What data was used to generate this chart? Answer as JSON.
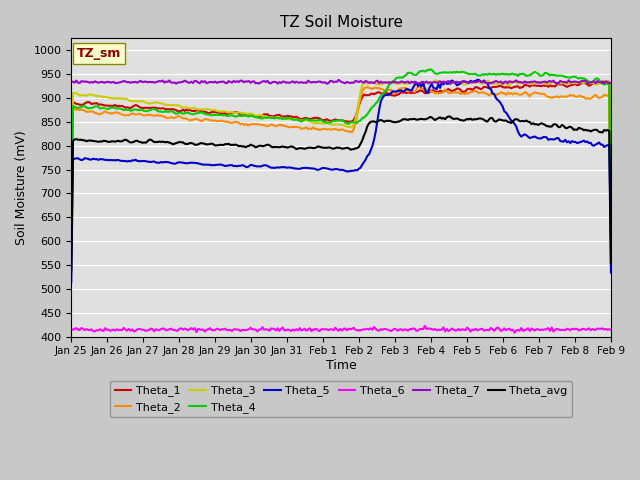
{
  "title": "TZ Soil Moisture",
  "xlabel": "Time",
  "ylabel": "Soil Moisture (mV)",
  "ylim": [
    400,
    1025
  ],
  "yticks": [
    400,
    450,
    500,
    550,
    600,
    650,
    700,
    750,
    800,
    850,
    900,
    950,
    1000
  ],
  "background_color": "#d8d8d8",
  "plot_bg_color": "#e8e8e8",
  "legend_label": "TZ_sm",
  "legend_label_color": "#8b0000",
  "legend_label_bg": "#ffffcc",
  "series": {
    "Theta_1": {
      "color": "#cc0000"
    },
    "Theta_2": {
      "color": "#ff8c00"
    },
    "Theta_3": {
      "color": "#cccc00"
    },
    "Theta_4": {
      "color": "#00cc00"
    },
    "Theta_5": {
      "color": "#0000cc"
    },
    "Theta_6": {
      "color": "#ff00ff"
    },
    "Theta_7": {
      "color": "#9900cc"
    },
    "Theta_avg": {
      "color": "#000000"
    }
  },
  "x_tick_labels": [
    "Jan 25",
    "Jan 26",
    "Jan 27",
    "Jan 28",
    "Jan 29",
    "Jan 30",
    "Jan 31",
    "Feb 1",
    "Feb 2",
    "Feb 3",
    "Feb 4",
    "Feb 5",
    "Feb 6",
    "Feb 7",
    "Feb 8",
    "Feb 9"
  ],
  "num_points": 320
}
